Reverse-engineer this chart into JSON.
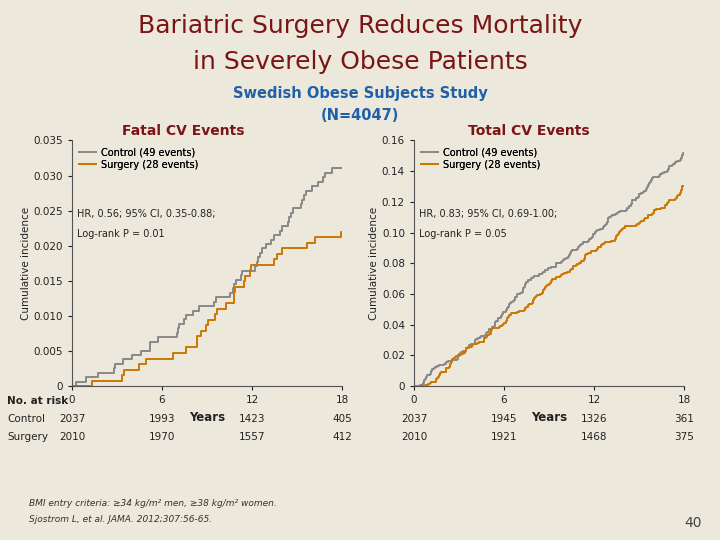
{
  "title_line1": "Bariatric Surgery Reduces Mortality",
  "title_line2": "in Severely Obese Patients",
  "subtitle_line1": "Swedish Obese Subjects Study",
  "subtitle_line2": "(N=4047)",
  "title_color": "#7B1515",
  "subtitle_color": "#2060A8",
  "background_color": "#EDE8DC",
  "panel_left_title": "Fatal CV Events",
  "panel_right_title": "Total CV Events",
  "panel_title_color": "#7B1515",
  "control_color": "#888888",
  "surgery_color": "#CC7700",
  "left_legend": [
    "Control (49 events)",
    "Surgery (28 events)",
    "HR, 0.56; 95% CI, 0.35-0.88;",
    "Log-rank P = 0.01"
  ],
  "right_legend": [
    "Control (49 events)",
    "Surgery (28 events)",
    "HR, 0.83; 95% CI, 0.69-1.00;",
    "Log-rank P = 0.05"
  ],
  "left_ylim": [
    0,
    0.035
  ],
  "left_yticks": [
    0,
    0.005,
    0.01,
    0.015,
    0.02,
    0.025,
    0.03,
    0.035
  ],
  "right_ylim": [
    0,
    0.16
  ],
  "right_yticks": [
    0,
    0.02,
    0.04,
    0.06,
    0.08,
    0.1,
    0.12,
    0.14,
    0.16
  ],
  "xlim": [
    0,
    18
  ],
  "xticks": [
    0,
    6,
    12,
    18
  ],
  "xlabel": "Years",
  "ylabel": "Cumulative incidence",
  "no_at_risk_label": "No. at risk",
  "left_control_label": "Control",
  "left_surgery_label": "Surgery",
  "left_control_risk": [
    "2037",
    "1993",
    "1423",
    "405"
  ],
  "left_surgery_risk": [
    "2010",
    "1970",
    "1557",
    "412"
  ],
  "right_control_risk": [
    "2037",
    "1945",
    "1326",
    "361"
  ],
  "right_surgery_risk": [
    "2010",
    "1921",
    "1468",
    "375"
  ],
  "footnote1": "BMI entry criteria: ≥34 kg/m² men, ≥38 kg/m² women.",
  "footnote2": "Sjostrom L, et al. JAMA. 2012;307:56-65.",
  "page_number": "40"
}
